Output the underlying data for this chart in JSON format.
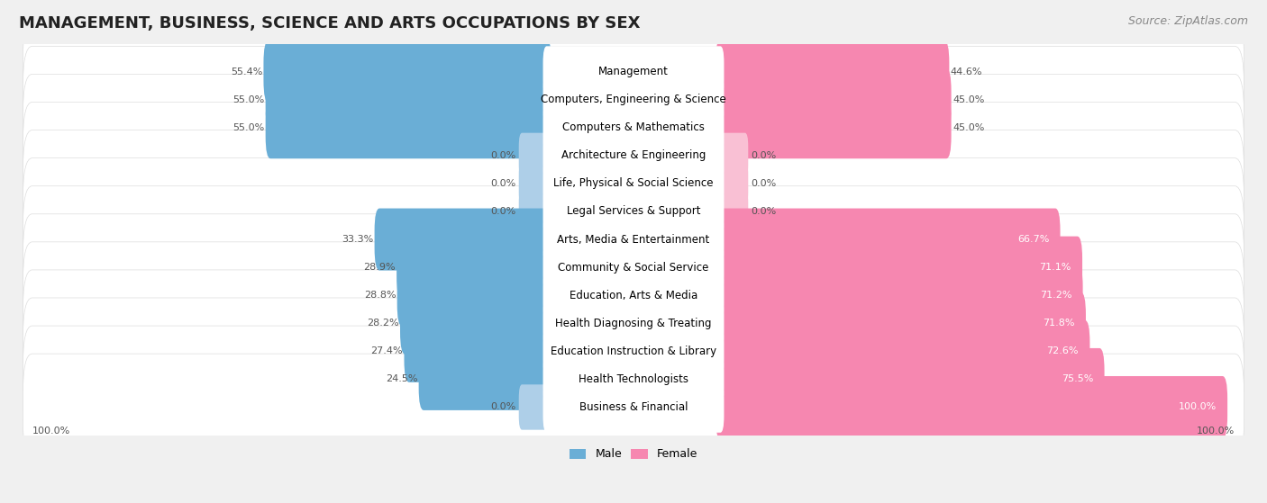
{
  "title": "MANAGEMENT, BUSINESS, SCIENCE AND ARTS OCCUPATIONS BY SEX",
  "source": "Source: ZipAtlas.com",
  "categories": [
    "Management",
    "Computers, Engineering & Science",
    "Computers & Mathematics",
    "Architecture & Engineering",
    "Life, Physical & Social Science",
    "Legal Services & Support",
    "Arts, Media & Entertainment",
    "Community & Social Service",
    "Education, Arts & Media",
    "Health Diagnosing & Treating",
    "Education Instruction & Library",
    "Health Technologists",
    "Business & Financial"
  ],
  "male_pct": [
    55.4,
    55.0,
    55.0,
    0.0,
    0.0,
    0.0,
    33.3,
    28.9,
    28.8,
    28.2,
    27.4,
    24.5,
    0.0
  ],
  "female_pct": [
    44.6,
    45.0,
    45.0,
    0.0,
    0.0,
    0.0,
    66.7,
    71.1,
    71.2,
    71.8,
    72.6,
    75.5,
    100.0
  ],
  "male_color": "#6aaed6",
  "male_color_light": "#aecfe8",
  "female_color": "#f687b0",
  "female_color_light": "#f9c0d4",
  "bg_color": "#f0f0f0",
  "row_bg_color": "#ffffff",
  "title_fontsize": 13,
  "label_fontsize": 8.5,
  "pct_fontsize": 8,
  "source_fontsize": 9
}
